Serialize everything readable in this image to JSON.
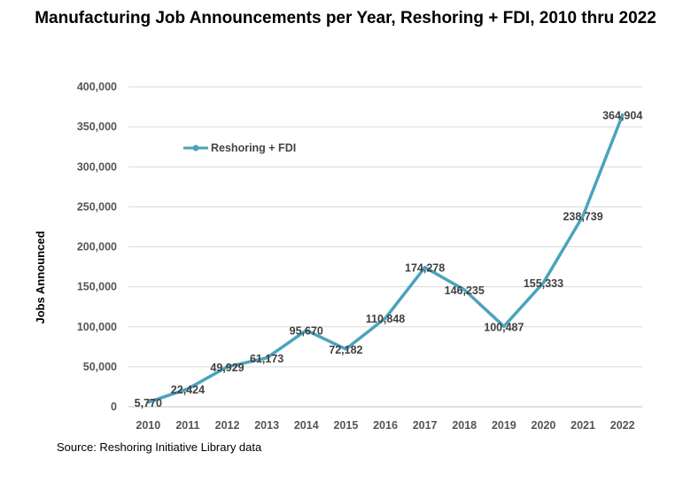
{
  "chart_data": {
    "type": "line",
    "title": "Manufacturing Job Announcements per Year, Reshoring + FDI, 2010 thru 2022",
    "ylabel": "Jobs Announced",
    "xlabel": "",
    "ylim": [
      0,
      400000
    ],
    "yticks": [
      0,
      50000,
      100000,
      150000,
      200000,
      250000,
      300000,
      350000,
      400000
    ],
    "ytick_labels": [
      "0",
      "50,000",
      "100,000",
      "150,000",
      "200,000",
      "250,000",
      "300,000",
      "350,000",
      "400,000"
    ],
    "categories": [
      "2010",
      "2011",
      "2012",
      "2013",
      "2014",
      "2015",
      "2016",
      "2017",
      "2018",
      "2019",
      "2020",
      "2021",
      "2022"
    ],
    "series": [
      {
        "name": "Reshoring + FDI",
        "color": "#4ba3bd",
        "values": [
          5770,
          22424,
          49929,
          61173,
          95670,
          72182,
          110848,
          174278,
          146235,
          100487,
          155333,
          238739,
          364904
        ],
        "labels": [
          "5,770",
          "22,424",
          "49,929",
          "61,173",
          "95,670",
          "72,182",
          "110,848",
          "174,278",
          "146,235",
          "100,487",
          "155,333",
          "238,739",
          "364,904"
        ]
      }
    ],
    "grid": true,
    "legend": "upper-left",
    "source": "Source: Reshoring Initiative Library data"
  }
}
